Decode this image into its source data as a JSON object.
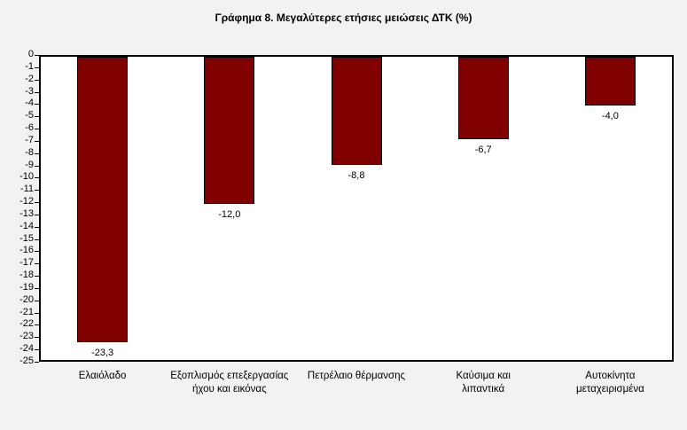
{
  "chart_data": {
    "type": "bar",
    "title": "Γράφημα 8. Μεγαλύτερες ετήσιες μειώσεις ΔΤΚ (%)",
    "categories": [
      "Ελαιόλαδο",
      "Εξοπλισμός επεξεργασίας\nήχου και εικόνας",
      "Πετρέλαιο θέρμανσης",
      "Καύσιμα και\nλιπαντικά",
      "Αυτοκίνητα\nμεταχειρισμένα"
    ],
    "values": [
      -23.3,
      -12.0,
      -8.8,
      -6.7,
      -4.0
    ],
    "value_labels": [
      "-23,3",
      "-12,0",
      "-8,8",
      "-6,7",
      "-4,0"
    ],
    "xlabel": "",
    "ylabel": "",
    "ylim": [
      0,
      -25
    ],
    "ytick_step": 1,
    "yticks": [
      0,
      -1,
      -2,
      -3,
      -4,
      -5,
      -6,
      -7,
      -8,
      -9,
      -10,
      -11,
      -12,
      -13,
      -14,
      -15,
      -16,
      -17,
      -18,
      -19,
      -20,
      -21,
      -22,
      -23,
      -24,
      -25
    ],
    "grid": false,
    "legend": "none",
    "bar_color": "#800000",
    "bar_border_color": "#000000",
    "plot_background": "#ffffff",
    "page_background": "#f2f2f2"
  }
}
